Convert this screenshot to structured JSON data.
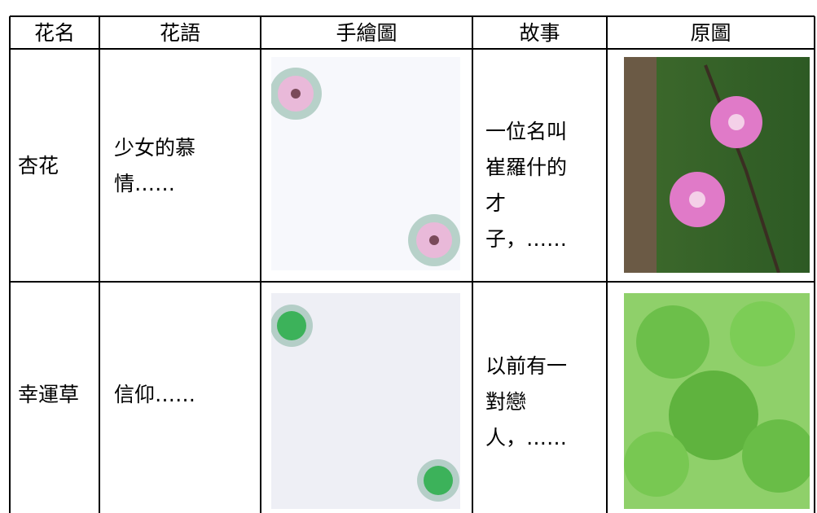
{
  "table": {
    "header": [
      "花名",
      "花語",
      "手繪圖",
      "故事",
      "原圖"
    ],
    "rows": [
      [
        "杏花",
        "少女的慕情……",
        "一位名叫崔羅什的才子，……"
      ],
      [
        "幸運草",
        "信仰……",
        "以前有一對戀人，……"
      ]
    ]
  }
}
